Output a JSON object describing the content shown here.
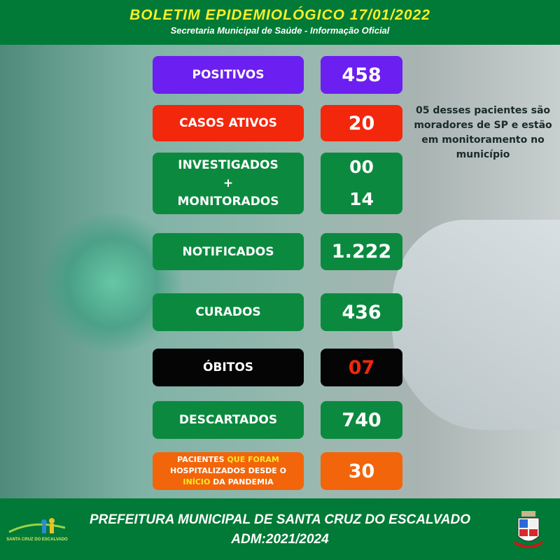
{
  "header": {
    "title": "BOLETIM  EPIDEMIOLÓGICO  17/01/2022",
    "subtitle": "Secretaria Municipal de Saúde - Informação Oficial"
  },
  "rows": [
    {
      "label": "POSITIVOS",
      "value": "458",
      "color": "#6b1ff0"
    },
    {
      "label": "CASOS ATIVOS",
      "value": "20",
      "color": "#f2270c"
    },
    {
      "label_lines": [
        "INVESTIGADOS",
        "+",
        "MONITORADOS"
      ],
      "values": [
        "00",
        "14"
      ],
      "color": "#0b8a3f"
    },
    {
      "label": "NOTIFICADOS",
      "value": "1.222",
      "color": "#0b8a3f"
    },
    {
      "label": "CURADOS",
      "value": "436",
      "color": "#0b8a3f"
    },
    {
      "label": "ÓBITOS",
      "value": "07",
      "color": "#050505",
      "value_color": "#f2270c"
    },
    {
      "label": "DESCARTADOS",
      "value": "740",
      "color": "#0b8a3f"
    },
    {
      "label_parts": [
        "PACIENTES ",
        "QUE FORAM",
        "HOSPITALIZADOS DESDE O",
        "INÍCIO",
        " DA PANDEMIA"
      ],
      "value": "30",
      "color": "#f2650a"
    }
  ],
  "note": "05 desses pacientes são moradores de SP e estão em monitoramento no município",
  "footer": {
    "line1": "PREFEITURA MUNICIPAL DE SANTA CRUZ DO ESCALVADO",
    "line2": "ADM:2021/2024",
    "logo_text": "SANTA CRUZ DO ESCALVADO"
  }
}
